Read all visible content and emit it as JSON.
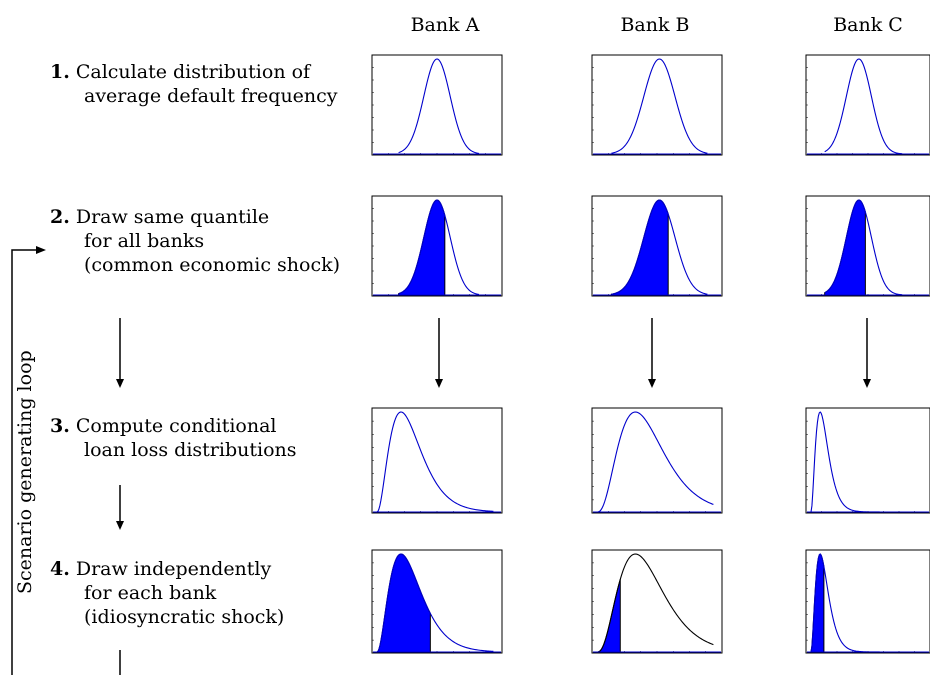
{
  "columns": [
    "Bank A",
    "Bank B",
    "Bank C"
  ],
  "steps": [
    {
      "num": "1.",
      "lines": [
        "Calculate distribution of",
        "average default frequency"
      ]
    },
    {
      "num": "2.",
      "lines": [
        "Draw same quantile",
        "for all banks",
        "(common economic shock)"
      ]
    },
    {
      "num": "3.",
      "lines": [
        "Compute conditional",
        "loan loss distributions"
      ]
    },
    {
      "num": "4.",
      "lines": [
        "Draw independently",
        "for each bank",
        "(idiosyncratic shock)"
      ]
    }
  ],
  "loop_label": "Scenario generating loop",
  "colors": {
    "curve": "#0000cc",
    "fill": "#0000ff",
    "frame": "#000000"
  }
}
